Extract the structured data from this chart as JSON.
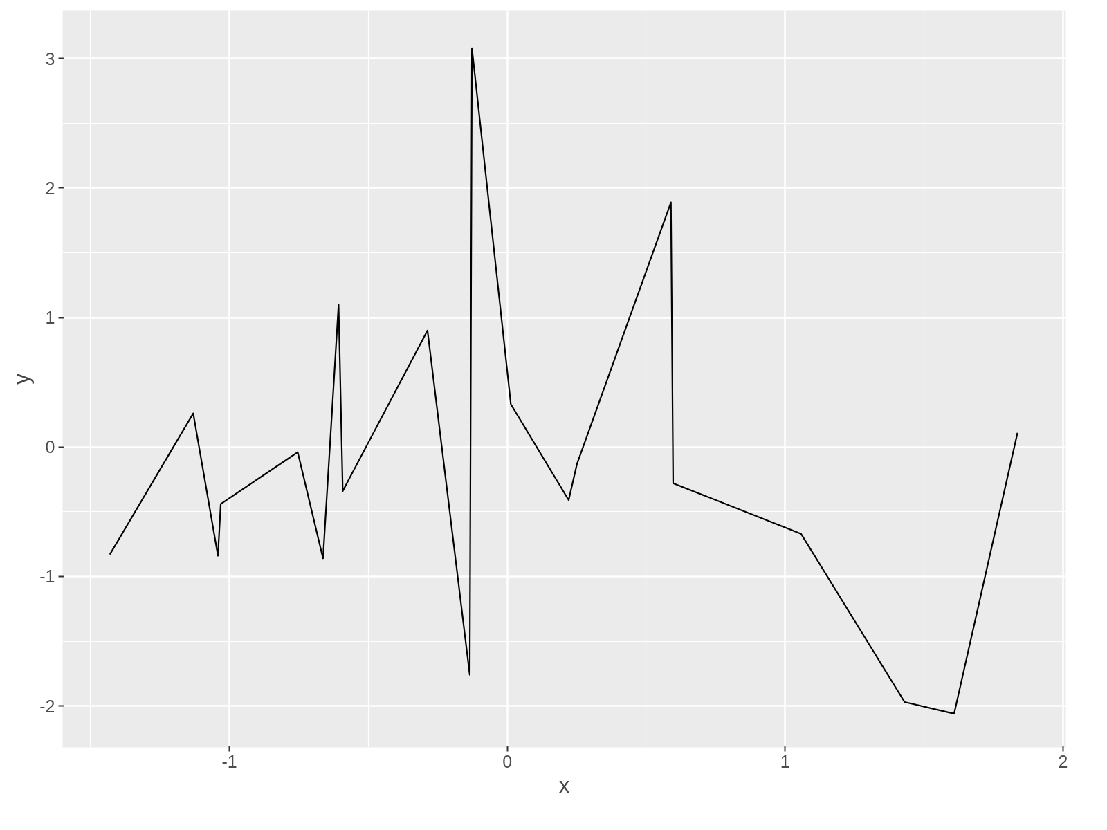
{
  "chart_data": {
    "type": "line",
    "xlabel": "x",
    "ylabel": "y",
    "x": [
      -1.43,
      -1.13,
      -1.041,
      -1.031,
      -0.754,
      -0.663,
      -0.607,
      -0.592,
      -0.287,
      -0.135,
      -0.127,
      0.013,
      0.221,
      0.251,
      0.589,
      0.597,
      1.057,
      1.43,
      1.608,
      1.836
    ],
    "series": [
      {
        "color": "#000000",
        "values": [
          -0.83,
          0.26,
          -0.84,
          -0.44,
          -0.04,
          -0.86,
          1.1,
          -0.34,
          0.9,
          -1.76,
          3.08,
          0.33,
          -0.41,
          -0.13,
          1.89,
          -0.28,
          -0.67,
          -1.97,
          -2.06,
          0.11
        ]
      }
    ],
    "xlim": [
      -1.6,
      2.01
    ],
    "ylim": [
      -2.32,
      3.37
    ],
    "xticks": [
      -1,
      0,
      1,
      2
    ],
    "yticks": [
      -2,
      -1,
      0,
      1,
      2,
      3
    ],
    "grid": true,
    "marker": "none",
    "line_style": "solid"
  }
}
